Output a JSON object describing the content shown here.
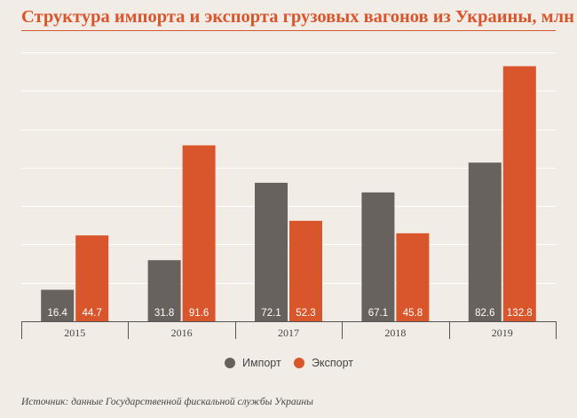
{
  "chart_data": {
    "type": "bar",
    "title": "Структура импорта и экспорта грузовых вагонов из Украины, млн $",
    "categories": [
      "2015",
      "2016",
      "2017",
      "2018",
      "2019"
    ],
    "series": [
      {
        "name": "Импорт",
        "color": "#67625e",
        "values": [
          16.4,
          31.8,
          72.1,
          67.1,
          82.6
        ]
      },
      {
        "name": "Экспорт",
        "color": "#d9552b",
        "values": [
          44.7,
          91.6,
          52.3,
          45.8,
          132.8
        ]
      }
    ],
    "ylim": [
      0,
      140
    ],
    "grid": true,
    "legend_position": "bottom"
  },
  "source": "Источник: данные Государственной фискальной службы Украины"
}
